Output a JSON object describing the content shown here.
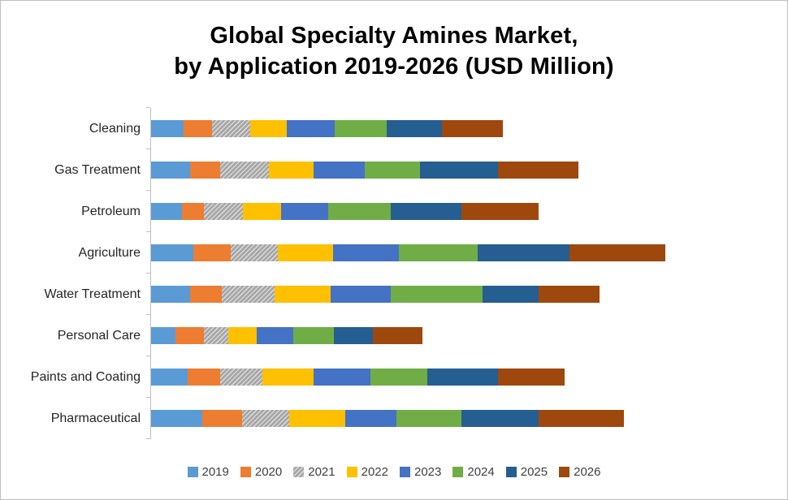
{
  "header": {
    "title_line1": "Global Specialty Amines Market,",
    "title_line2": "by Application 2019-2026 (USD Million)"
  },
  "chart_data": {
    "type": "bar",
    "orientation": "horizontal",
    "stacked": true,
    "title": "Global Specialty Amines Market, by Application 2019-2026 (USD Million)",
    "xlabel": "",
    "ylabel": "",
    "xlim": [
      0,
      760
    ],
    "grid": false,
    "legend_position": "bottom",
    "axis_tick_labels_visible": false,
    "categories": [
      "Cleaning",
      "Gas Treatment",
      "Petroleum",
      "Agriculture",
      "Water Treatment",
      "Personal Care",
      "Paints and Coating",
      "Pharmaceutical"
    ],
    "series": [
      {
        "name": "2019",
        "color": "#5B9BD5",
        "pattern": false,
        "values": [
          40,
          48,
          38,
          52,
          48,
          30,
          45,
          63
        ]
      },
      {
        "name": "2020",
        "color": "#ED7D31",
        "pattern": false,
        "values": [
          35,
          37,
          27,
          46,
          39,
          35,
          40,
          49
        ]
      },
      {
        "name": "2021",
        "color": "#A5A5A5",
        "pattern": true,
        "values": [
          47,
          60,
          48,
          58,
          65,
          30,
          52,
          58
        ]
      },
      {
        "name": "2022",
        "color": "#FFC000",
        "pattern": false,
        "values": [
          45,
          55,
          47,
          68,
          69,
          35,
          63,
          69
        ]
      },
      {
        "name": "2023",
        "color": "#4472C4",
        "pattern": false,
        "values": [
          59,
          63,
          58,
          81,
          74,
          45,
          70,
          63
        ]
      },
      {
        "name": "2024",
        "color": "#70AD47",
        "pattern": false,
        "values": [
          64,
          68,
          77,
          98,
          114,
          50,
          70,
          81
        ]
      },
      {
        "name": "2025",
        "color": "#255E91",
        "pattern": false,
        "values": [
          68,
          97,
          88,
          113,
          69,
          48,
          88,
          95
        ]
      },
      {
        "name": "2026",
        "color": "#9E480E",
        "pattern": false,
        "values": [
          76,
          99,
          95,
          118,
          75,
          61,
          82,
          105
        ]
      }
    ],
    "values_unit": "USD Million (relative estimates, axis unlabeled)"
  }
}
